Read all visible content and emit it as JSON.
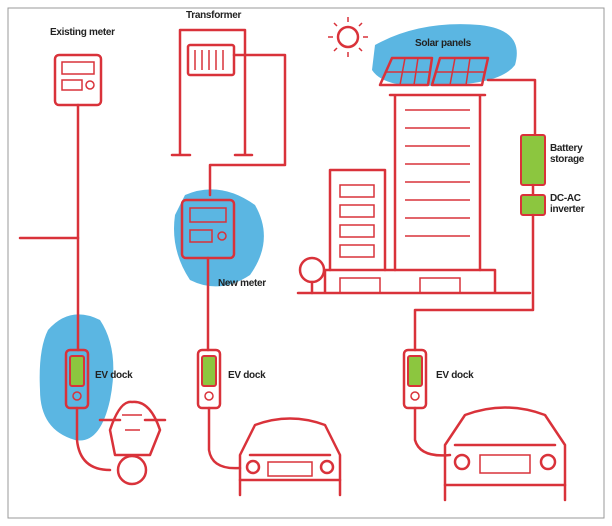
{
  "labels": {
    "existing_meter": "Existing meter",
    "transformer": "Transformer",
    "solar_panels": "Solar panels",
    "battery_storage": "Battery storage",
    "inverter": "DC-AC inverter",
    "new_meter": "New meter",
    "ev_docks": [
      "EV dock",
      "EV dock",
      "EV dock"
    ]
  }
}
